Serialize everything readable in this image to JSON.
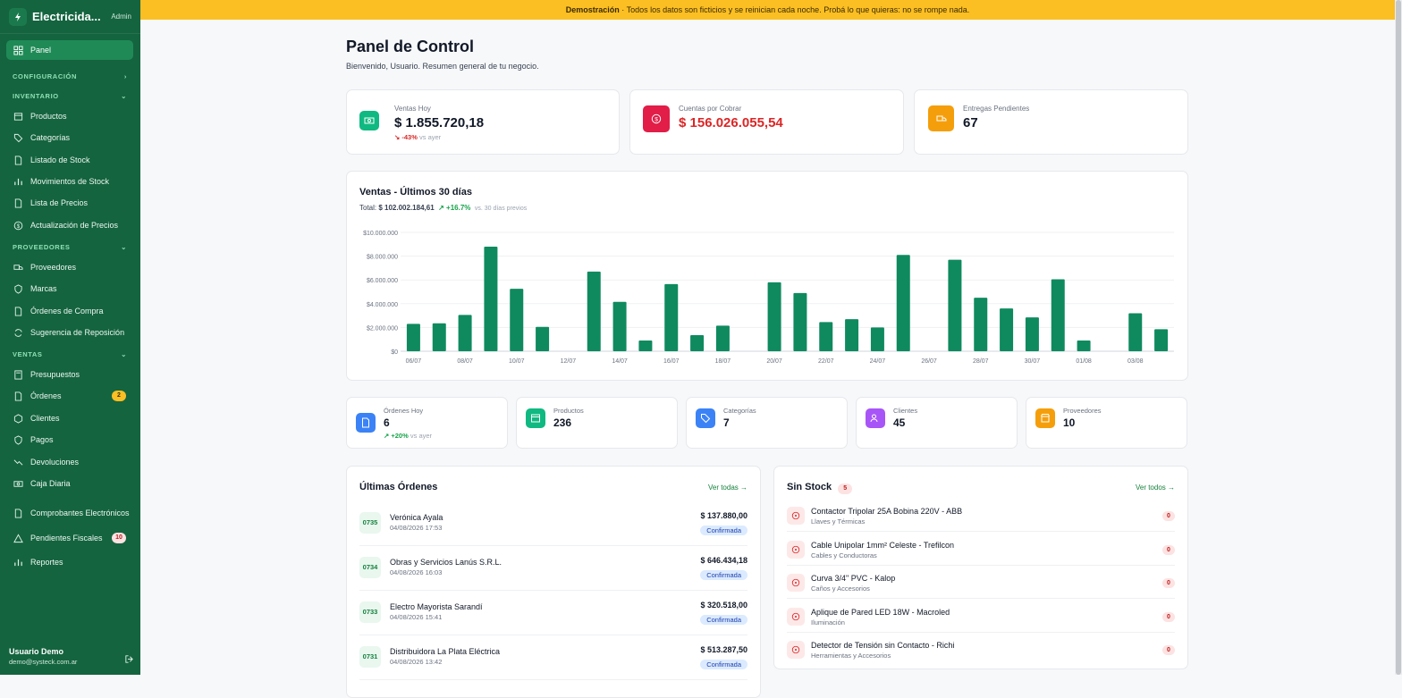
{
  "brand": {
    "name": "Electricida...",
    "role": "Admin"
  },
  "banner": {
    "strong": "Demostración",
    "text": " · Todos los datos son ficticios y se reinician cada noche. Probá lo que quieras: no se rompe nada."
  },
  "nav": {
    "panel": "Panel",
    "sections": {
      "config": "CONFIGURACIÓN",
      "inventario": "INVENTARIO",
      "proveedores": "PROVEEDORES",
      "ventas": "VENTAS"
    },
    "inventario": [
      "Productos",
      "Categorías",
      "Listado de Stock",
      "Movimientos de Stock",
      "Lista de Precios",
      "Actualización de Precios"
    ],
    "proveedores": [
      "Proveedores",
      "Marcas",
      "Órdenes de Compra",
      "Sugerencia de Reposición"
    ],
    "ventas": [
      "Presupuestos",
      "Órdenes",
      "Clientes",
      "Pagos",
      "Devoluciones",
      "Caja Diaria",
      "Comprobantes Electrónicos",
      "Pendientes Fiscales",
      "Reportes"
    ],
    "ordenes_badge": "2",
    "pendientes_badge": "10"
  },
  "user": {
    "name": "Usuario Demo",
    "email": "demo@systeck.com.ar"
  },
  "header": {
    "title": "Panel de Control",
    "subtitle": "Bienvenido, Usuario. Resumen general de tu negocio."
  },
  "stats": {
    "ventas_hoy": {
      "label": "Ventas Hoy",
      "value": "$ 1.855.720,18",
      "change": "-43%",
      "vs": "vs ayer"
    },
    "cuentas": {
      "label": "Cuentas por Cobrar",
      "value": "$ 156.026.055,54"
    },
    "entregas": {
      "label": "Entregas Pendientes",
      "value": "67"
    }
  },
  "sales_chart": {
    "title": "Ventas - Últimos 30 días",
    "total_label": "Total:",
    "total": "$ 102.002.184,61",
    "change": "+16.7%",
    "vs": "vs. 30 días previos"
  },
  "chart_data": {
    "type": "bar",
    "title": "Ventas - Últimos 30 días",
    "ylim": [
      0,
      10000000
    ],
    "yticks": [
      "$0",
      "$2.000.000",
      "$4.000.000",
      "$6.000.000",
      "$8.000.000",
      "$10.000.000"
    ],
    "xticks": [
      "06/07",
      "08/07",
      "10/07",
      "12/07",
      "14/07",
      "16/07",
      "18/07",
      "20/07",
      "22/07",
      "24/07",
      "26/07",
      "28/07",
      "30/07",
      "01/08",
      "03/08"
    ],
    "values": [
      2300000,
      2350000,
      3050000,
      8800000,
      5250000,
      2050000,
      0,
      6700000,
      4150000,
      900000,
      5650000,
      1350000,
      2150000,
      0,
      5800000,
      4900000,
      2450000,
      2700000,
      2000000,
      8100000,
      0,
      7700000,
      4500000,
      3600000,
      2850000,
      6050000,
      900000,
      0,
      3200000,
      1850000
    ]
  },
  "mini": [
    {
      "label": "Órdenes Hoy",
      "value": "6",
      "change": "+20%",
      "vs": "vs ayer"
    },
    {
      "label": "Productos",
      "value": "236"
    },
    {
      "label": "Categorías",
      "value": "7"
    },
    {
      "label": "Clientes",
      "value": "45"
    },
    {
      "label": "Proveedores",
      "value": "10"
    }
  ],
  "orders": {
    "title": "Últimas Órdenes",
    "link": "Ver todas →",
    "rows": [
      {
        "num": "0735",
        "customer": "Verónica Ayala",
        "date": "04/08/2026 17:53",
        "amount": "$ 137.880,00",
        "status": "Confirmada"
      },
      {
        "num": "0734",
        "customer": "Obras y Servicios Lanús S.R.L.",
        "date": "04/08/2026 16:03",
        "amount": "$ 646.434,18",
        "status": "Confirmada"
      },
      {
        "num": "0733",
        "customer": "Electro Mayorista Sarandí",
        "date": "04/08/2026 15:41",
        "amount": "$ 320.518,00",
        "status": "Confirmada"
      },
      {
        "num": "0731",
        "customer": "Distribuidora La Plata Eléctrica",
        "date": "04/08/2026 13:42",
        "amount": "$ 513.287,50",
        "status": "Confirmada"
      }
    ]
  },
  "stock": {
    "title": "Sin Stock",
    "count": "5",
    "link": "Ver todos →",
    "rows": [
      {
        "name": "Contactor Tripolar 25A Bobina 220V - ABB",
        "cat": "Llaves y Térmicas",
        "qty": "0"
      },
      {
        "name": "Cable Unipolar 1mm² Celeste - Trefilcon",
        "cat": "Cables y Conductoras",
        "qty": "0"
      },
      {
        "name": "Curva 3/4\" PVC - Kalop",
        "cat": "Caños y Accesorios",
        "qty": "0"
      },
      {
        "name": "Aplique de Pared LED 18W - Macroled",
        "cat": "Iluminación",
        "qty": "0"
      },
      {
        "name": "Detector de Tensión sin Contacto - Richi",
        "cat": "Herramientas y Accesorios",
        "qty": "0"
      }
    ]
  }
}
